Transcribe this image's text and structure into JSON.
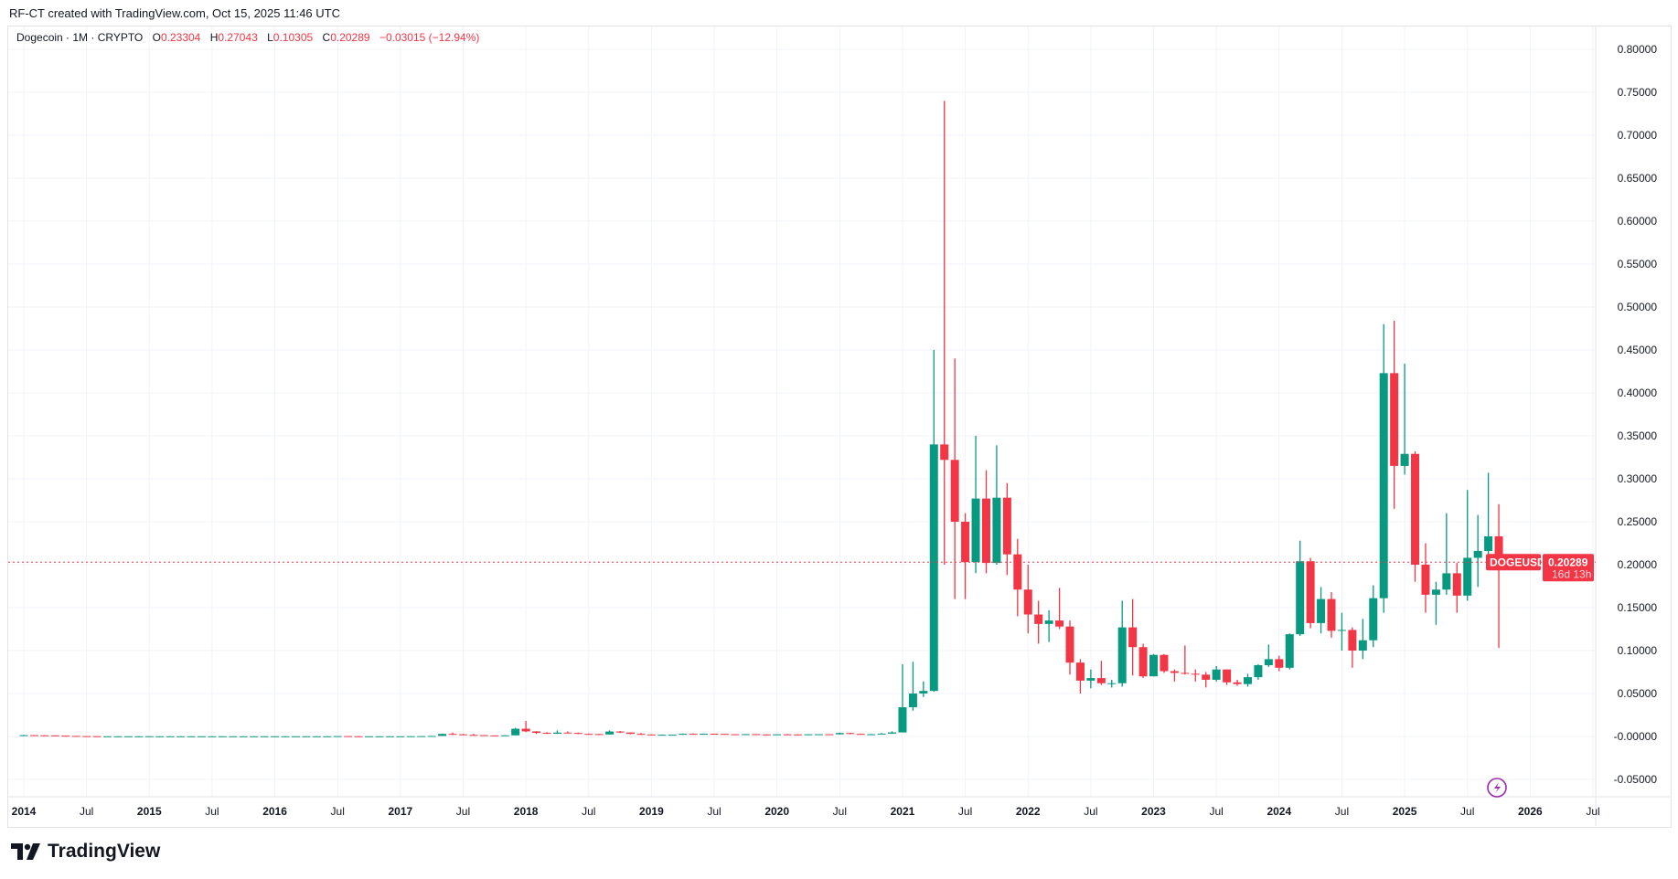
{
  "header": {
    "credit": "RF-CT created with TradingView.com, Oct 15, 2025 11:46 UTC"
  },
  "legend": {
    "symbol": "Dogecoin · 1M · CRYPTO",
    "open_label": "O",
    "open": "0.23304",
    "high_label": "H",
    "high": "0.27043",
    "low_label": "L",
    "low": "0.10305",
    "close_label": "C",
    "close": "0.20289",
    "change": "−0.03015 (−12.94%)"
  },
  "price_tag": {
    "symbol": "DOGEUSD",
    "price": "0.20289",
    "countdown": "16d 13h"
  },
  "logo": {
    "text": "TradingView"
  },
  "colors": {
    "up": "#089981",
    "down": "#f23645",
    "grid": "#f0f3fa",
    "text": "#131722"
  },
  "chart_data": {
    "type": "candlestick",
    "interval": "1M",
    "start_month": "2014-01",
    "ylim": [
      -0.06,
      0.81
    ],
    "grid": true,
    "y_ticks": [
      "0.80000",
      "0.75000",
      "0.70000",
      "0.65000",
      "0.60000",
      "0.55000",
      "0.50000",
      "0.45000",
      "0.40000",
      "0.35000",
      "0.30000",
      "0.25000",
      "0.20000",
      "0.15000",
      "0.10000",
      "0.05000",
      "-0.00000",
      "-0.05000"
    ],
    "x_ticks": [
      "2014",
      "Jul",
      "2015",
      "Jul",
      "2016",
      "Jul",
      "2017",
      "Jul",
      "2018",
      "Jul",
      "2019",
      "Jul",
      "2020",
      "Jul",
      "2021",
      "Jul",
      "2022",
      "Jul",
      "2023",
      "Jul",
      "2024",
      "Jul",
      "2025",
      "Jul",
      "2026",
      "Jul"
    ],
    "last_price": 0.20289,
    "ohlc": [
      [
        0.0014,
        0.002,
        0.0012,
        0.0015
      ],
      [
        0.0015,
        0.0016,
        0.0011,
        0.0013
      ],
      [
        0.0013,
        0.0014,
        0.001,
        0.0012
      ],
      [
        0.0012,
        0.0013,
        0.0008,
        0.0009
      ],
      [
        0.0009,
        0.001,
        0.0005,
        0.0006
      ],
      [
        0.0006,
        0.0007,
        0.0003,
        0.0004
      ],
      [
        0.0004,
        0.0005,
        0.0002,
        0.0003
      ],
      [
        0.0003,
        0.0004,
        0.0002,
        0.0002
      ],
      [
        0.0002,
        0.0003,
        0.0002,
        0.0002
      ],
      [
        0.0002,
        0.0003,
        0.0001,
        0.0002
      ],
      [
        0.0002,
        0.0003,
        0.0001,
        0.0002
      ],
      [
        0.0002,
        0.0003,
        0.0001,
        0.0002
      ],
      [
        0.0002,
        0.0003,
        0.0001,
        0.0002
      ],
      [
        0.0002,
        0.0003,
        0.0001,
        0.0002
      ],
      [
        0.0002,
        0.0003,
        0.0001,
        0.0002
      ],
      [
        0.0002,
        0.0003,
        0.0001,
        0.0002
      ],
      [
        0.0002,
        0.0003,
        0.0001,
        0.0002
      ],
      [
        0.0002,
        0.0003,
        0.0001,
        0.0002
      ],
      [
        0.0002,
        0.0003,
        0.0001,
        0.0002
      ],
      [
        0.0002,
        0.0003,
        0.0001,
        0.0002
      ],
      [
        0.0002,
        0.0003,
        0.0001,
        0.0002
      ],
      [
        0.0002,
        0.0003,
        0.0001,
        0.0002
      ],
      [
        0.0002,
        0.0003,
        0.0001,
        0.0002
      ],
      [
        0.0002,
        0.0003,
        0.0001,
        0.0002
      ],
      [
        0.0002,
        0.0003,
        0.0001,
        0.0002
      ],
      [
        0.0002,
        0.0003,
        0.0001,
        0.0002
      ],
      [
        0.0002,
        0.0003,
        0.0001,
        0.0002
      ],
      [
        0.0002,
        0.0003,
        0.0001,
        0.0002
      ],
      [
        0.0002,
        0.0003,
        0.0001,
        0.0002
      ],
      [
        0.0002,
        0.0003,
        0.0001,
        0.0002
      ],
      [
        0.0002,
        0.0005,
        0.0002,
        0.0004
      ],
      [
        0.0004,
        0.0005,
        0.0002,
        0.0003
      ],
      [
        0.0003,
        0.0004,
        0.0002,
        0.0002
      ],
      [
        0.0002,
        0.0003,
        0.0002,
        0.0002
      ],
      [
        0.0002,
        0.0003,
        0.0002,
        0.0002
      ],
      [
        0.0002,
        0.0003,
        0.0002,
        0.0002
      ],
      [
        0.0002,
        0.0003,
        0.0002,
        0.0002
      ],
      [
        0.0002,
        0.0003,
        0.0002,
        0.0003
      ],
      [
        0.0003,
        0.0005,
        0.0003,
        0.0004
      ],
      [
        0.0004,
        0.0006,
        0.0004,
        0.0006
      ],
      [
        0.0006,
        0.0033,
        0.0006,
        0.003
      ],
      [
        0.003,
        0.0045,
        0.0018,
        0.0025
      ],
      [
        0.0025,
        0.003,
        0.0015,
        0.0018
      ],
      [
        0.0018,
        0.003,
        0.0012,
        0.0015
      ],
      [
        0.0015,
        0.0016,
        0.001,
        0.0012
      ],
      [
        0.0012,
        0.0012,
        0.0009,
        0.001
      ],
      [
        0.001,
        0.0015,
        0.001,
        0.0013
      ],
      [
        0.0013,
        0.01,
        0.0012,
        0.009
      ],
      [
        0.009,
        0.018,
        0.005,
        0.0059
      ],
      [
        0.0059,
        0.0062,
        0.003,
        0.0042
      ],
      [
        0.0042,
        0.005,
        0.003,
        0.0032
      ],
      [
        0.0032,
        0.007,
        0.003,
        0.0045
      ],
      [
        0.0045,
        0.006,
        0.004,
        0.0041
      ],
      [
        0.0041,
        0.0045,
        0.0028,
        0.003
      ],
      [
        0.003,
        0.0035,
        0.0025,
        0.0028
      ],
      [
        0.0028,
        0.003,
        0.0022,
        0.0023
      ],
      [
        0.0023,
        0.007,
        0.0022,
        0.0058
      ],
      [
        0.0058,
        0.0063,
        0.004,
        0.0046
      ],
      [
        0.0046,
        0.0048,
        0.0026,
        0.003
      ],
      [
        0.003,
        0.004,
        0.0018,
        0.0023
      ],
      [
        0.0023,
        0.0025,
        0.0019,
        0.002
      ],
      [
        0.002,
        0.0023,
        0.0019,
        0.002
      ],
      [
        0.002,
        0.0021,
        0.0019,
        0.002
      ],
      [
        0.002,
        0.0035,
        0.0019,
        0.0031
      ],
      [
        0.0031,
        0.0035,
        0.0023,
        0.003
      ],
      [
        0.003,
        0.0033,
        0.0026,
        0.0032
      ],
      [
        0.0032,
        0.0033,
        0.0026,
        0.003
      ],
      [
        0.003,
        0.0031,
        0.0025,
        0.0026
      ],
      [
        0.0026,
        0.0027,
        0.0024,
        0.0025
      ],
      [
        0.0025,
        0.0028,
        0.0024,
        0.0027
      ],
      [
        0.0027,
        0.0028,
        0.0022,
        0.0024
      ],
      [
        0.0024,
        0.0025,
        0.002,
        0.002
      ],
      [
        0.002,
        0.0026,
        0.002,
        0.0025
      ],
      [
        0.0025,
        0.0029,
        0.0022,
        0.0024
      ],
      [
        0.0024,
        0.0025,
        0.0014,
        0.002
      ],
      [
        0.002,
        0.0027,
        0.0019,
        0.0025
      ],
      [
        0.0025,
        0.0027,
        0.0023,
        0.0026
      ],
      [
        0.0026,
        0.0027,
        0.0024,
        0.0025
      ],
      [
        0.0025,
        0.0045,
        0.0024,
        0.004
      ],
      [
        0.004,
        0.0042,
        0.0026,
        0.003
      ],
      [
        0.003,
        0.0034,
        0.0024,
        0.0026
      ],
      [
        0.0026,
        0.0028,
        0.0024,
        0.0026
      ],
      [
        0.0026,
        0.004,
        0.0025,
        0.0033
      ],
      [
        0.0033,
        0.006,
        0.003,
        0.0047
      ],
      [
        0.0047,
        0.084,
        0.0047,
        0.034
      ],
      [
        0.034,
        0.087,
        0.03,
        0.05
      ],
      [
        0.05,
        0.064,
        0.046,
        0.053
      ],
      [
        0.053,
        0.45,
        0.052,
        0.34
      ],
      [
        0.34,
        0.74,
        0.2,
        0.322
      ],
      [
        0.322,
        0.44,
        0.16,
        0.25
      ],
      [
        0.25,
        0.26,
        0.16,
        0.203
      ],
      [
        0.203,
        0.35,
        0.19,
        0.277
      ],
      [
        0.277,
        0.31,
        0.19,
        0.202
      ],
      [
        0.202,
        0.339,
        0.2,
        0.278
      ],
      [
        0.278,
        0.295,
        0.188,
        0.212
      ],
      [
        0.212,
        0.23,
        0.14,
        0.171
      ],
      [
        0.171,
        0.2,
        0.12,
        0.142
      ],
      [
        0.142,
        0.158,
        0.108,
        0.131
      ],
      [
        0.131,
        0.147,
        0.11,
        0.135
      ],
      [
        0.135,
        0.173,
        0.125,
        0.128
      ],
      [
        0.128,
        0.135,
        0.072,
        0.086
      ],
      [
        0.086,
        0.09,
        0.05,
        0.065
      ],
      [
        0.065,
        0.078,
        0.056,
        0.068
      ],
      [
        0.068,
        0.088,
        0.06,
        0.062
      ],
      [
        0.062,
        0.066,
        0.057,
        0.062
      ],
      [
        0.062,
        0.158,
        0.058,
        0.127
      ],
      [
        0.127,
        0.16,
        0.071,
        0.104
      ],
      [
        0.104,
        0.108,
        0.068,
        0.07
      ],
      [
        0.07,
        0.096,
        0.07,
        0.095
      ],
      [
        0.095,
        0.096,
        0.074,
        0.076
      ],
      [
        0.076,
        0.078,
        0.064,
        0.074
      ],
      [
        0.074,
        0.106,
        0.072,
        0.073
      ],
      [
        0.073,
        0.078,
        0.064,
        0.072
      ],
      [
        0.072,
        0.075,
        0.057,
        0.066
      ],
      [
        0.066,
        0.082,
        0.064,
        0.078
      ],
      [
        0.078,
        0.078,
        0.06,
        0.063
      ],
      [
        0.063,
        0.066,
        0.059,
        0.061
      ],
      [
        0.061,
        0.073,
        0.058,
        0.069
      ],
      [
        0.069,
        0.084,
        0.066,
        0.083
      ],
      [
        0.083,
        0.107,
        0.081,
        0.09
      ],
      [
        0.09,
        0.094,
        0.076,
        0.08
      ],
      [
        0.08,
        0.12,
        0.078,
        0.119
      ],
      [
        0.119,
        0.228,
        0.117,
        0.204
      ],
      [
        0.204,
        0.208,
        0.126,
        0.132
      ],
      [
        0.132,
        0.174,
        0.12,
        0.16
      ],
      [
        0.16,
        0.168,
        0.115,
        0.123
      ],
      [
        0.123,
        0.144,
        0.1,
        0.124
      ],
      [
        0.124,
        0.127,
        0.08,
        0.1
      ],
      [
        0.1,
        0.137,
        0.09,
        0.112
      ],
      [
        0.112,
        0.176,
        0.104,
        0.161
      ],
      [
        0.161,
        0.48,
        0.144,
        0.423
      ],
      [
        0.423,
        0.484,
        0.265,
        0.315
      ],
      [
        0.315,
        0.434,
        0.305,
        0.329
      ],
      [
        0.329,
        0.332,
        0.18,
        0.2
      ],
      [
        0.2,
        0.225,
        0.144,
        0.165
      ],
      [
        0.165,
        0.18,
        0.13,
        0.171
      ],
      [
        0.171,
        0.26,
        0.165,
        0.19
      ],
      [
        0.19,
        0.202,
        0.144,
        0.164
      ],
      [
        0.164,
        0.287,
        0.158,
        0.208
      ],
      [
        0.208,
        0.258,
        0.174,
        0.216
      ],
      [
        0.216,
        0.307,
        0.199,
        0.233
      ],
      [
        0.23304,
        0.27043,
        0.10305,
        0.20289
      ]
    ]
  }
}
